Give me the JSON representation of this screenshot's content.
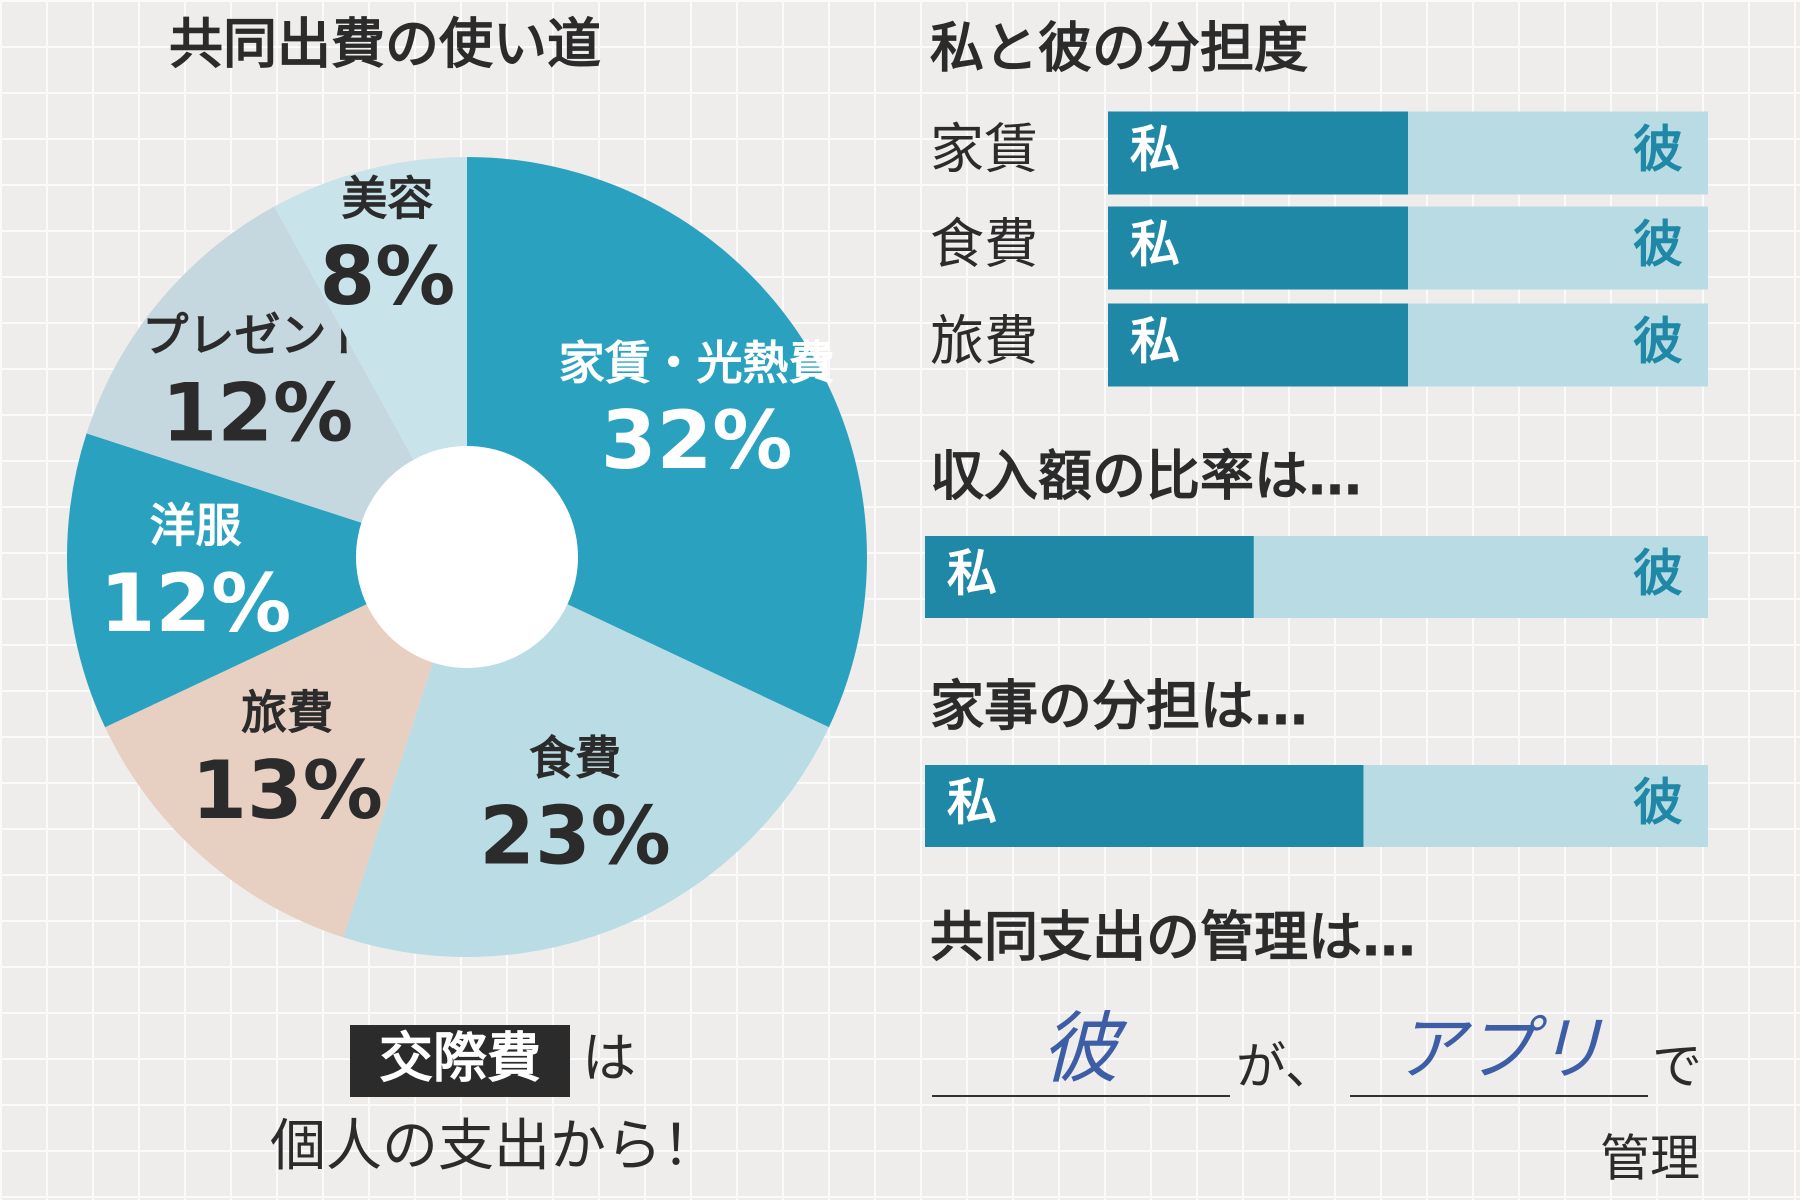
{
  "chart_data": [
    {
      "type": "pie",
      "title": "共同出費の使い道",
      "categories": [
        "家賃・光熱費",
        "食費",
        "旅費",
        "洋服",
        "プレゼント",
        "美容"
      ],
      "values": [
        32,
        23,
        13,
        12,
        12,
        8
      ],
      "value_labels": [
        "32%",
        "23%",
        "13%",
        "12%",
        "12%",
        "8%"
      ],
      "colors": [
        "#2aa2bf",
        "#b9dce5",
        "#e7d0c1",
        "#2aa2bf",
        "#c5d7df",
        "#c9e3eb"
      ]
    },
    {
      "type": "bar",
      "orientation": "horizontal",
      "stacked": true,
      "title": "私と彼の分担度",
      "categories": [
        "家賃",
        "食費",
        "旅費"
      ],
      "series": [
        {
          "name": "私",
          "color": "#1f88a6",
          "values": [
            50,
            50,
            50
          ]
        },
        {
          "name": "彼",
          "color": "#b9dbe3",
          "values": [
            50,
            50,
            50
          ]
        }
      ]
    },
    {
      "type": "bar",
      "orientation": "horizontal",
      "stacked": true,
      "title": "収入額の比率は…",
      "series": [
        {
          "name": "私",
          "color": "#1f88a6",
          "values": [
            42
          ]
        },
        {
          "name": "彼",
          "color": "#b9dbe3",
          "values": [
            58
          ]
        }
      ]
    },
    {
      "type": "bar",
      "orientation": "horizontal",
      "stacked": true,
      "title": "家事の分担は…",
      "series": [
        {
          "name": "私",
          "color": "#1f88a6",
          "values": [
            56
          ]
        },
        {
          "name": "彼",
          "color": "#b9dbe3",
          "values": [
            44
          ]
        }
      ]
    }
  ],
  "notes": {
    "social": {
      "highlight": "交際費",
      "after": "は",
      "line2": "個人の支出から！"
    },
    "management": {
      "title": "共同支出の管理は…",
      "who": "彼",
      "particle": "が、",
      "tool": "アプリ",
      "tail": "で",
      "end": "管理"
    }
  }
}
